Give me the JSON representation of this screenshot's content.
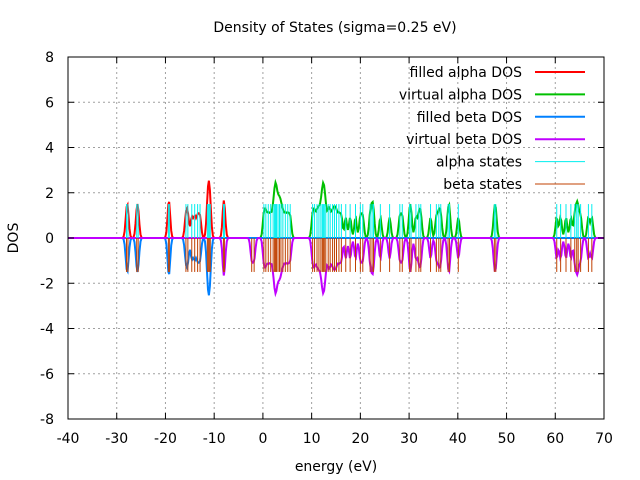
{
  "chart_data": {
    "type": "line",
    "title": "Density of States (sigma=0.25 eV)",
    "xlabel": "energy (eV)",
    "ylabel": "DOS",
    "xlim": [
      -40,
      70
    ],
    "ylim": [
      -8,
      8
    ],
    "xticks": [
      "-40",
      "-30",
      "-20",
      "-10",
      "0",
      "10",
      "20",
      "30",
      "40",
      "50",
      "60",
      "70"
    ],
    "xtick_values": [
      -40,
      -30,
      -20,
      -10,
      0,
      10,
      20,
      30,
      40,
      50,
      60,
      70
    ],
    "yticks": [
      "8",
      "6",
      "4",
      "2",
      "0",
      "-2",
      "-4",
      "-6",
      "-8"
    ],
    "ytick_values": [
      8,
      6,
      4,
      2,
      0,
      -2,
      -4,
      -6,
      -8
    ],
    "grid": true,
    "legend_position": "top-right",
    "sigma": 0.25,
    "state_height": 1.5,
    "series": [
      {
        "name": "filled alpha DOS",
        "color": "#ff0000",
        "sign": 1,
        "states": [
          -28.0,
          -27.7,
          -25.9,
          -25.6,
          -19.4,
          -19.2,
          -15.8,
          -15.4,
          -14.6,
          -14.0,
          -13.4,
          -12.9,
          -11.4,
          -11.2,
          -11.0,
          -10.8,
          -8.1,
          -7.9
        ]
      },
      {
        "name": "virtual alpha DOS",
        "color": "#00c000",
        "sign": 1,
        "states": [
          0.2,
          0.6,
          1.1,
          1.6,
          2.1,
          2.4,
          2.6,
          2.8,
          3.1,
          3.4,
          3.7,
          4.1,
          4.6,
          5.1,
          5.6,
          10.2,
          10.6,
          11.1,
          11.5,
          11.9,
          12.2,
          12.4,
          12.6,
          12.9,
          13.4,
          13.8,
          14.3,
          14.7,
          15.1,
          15.6,
          16.1,
          17.0,
          17.9,
          19.0,
          20.0,
          20.5,
          22.0,
          22.4,
          22.7,
          24.1,
          26.0,
          28.1,
          28.6,
          30.1,
          30.4,
          31.4,
          32.0,
          32.4,
          34.4,
          35.6,
          36.1,
          36.5,
          38.0,
          38.3,
          40.1,
          47.5,
          47.8,
          60.3,
          61.1,
          62.2,
          63.2,
          64.0,
          64.4,
          64.7,
          65.2,
          66.8,
          67.5
        ]
      },
      {
        "name": "filled beta DOS",
        "color": "#0080ff",
        "sign": -1,
        "states": [
          -28.0,
          -27.7,
          -25.9,
          -25.6,
          -19.4,
          -19.2,
          -15.8,
          -15.4,
          -14.6,
          -14.0,
          -13.4,
          -12.9,
          -11.4,
          -11.2,
          -11.0,
          -10.8
        ]
      },
      {
        "name": "virtual beta DOS",
        "color": "#c000ff",
        "sign": -1,
        "states": [
          -8.1,
          -7.9,
          -2.3,
          -1.8,
          0.2,
          0.6,
          1.1,
          1.6,
          2.1,
          2.4,
          2.6,
          2.8,
          3.1,
          3.4,
          3.7,
          4.1,
          4.6,
          5.1,
          5.6,
          10.2,
          10.6,
          11.1,
          11.5,
          11.9,
          12.2,
          12.4,
          12.6,
          12.9,
          13.4,
          13.8,
          14.3,
          14.7,
          15.1,
          15.6,
          16.1,
          17.0,
          17.9,
          19.0,
          20.0,
          20.5,
          22.0,
          22.4,
          22.7,
          24.1,
          26.0,
          28.1,
          28.6,
          30.1,
          30.4,
          31.4,
          32.0,
          32.4,
          34.4,
          35.6,
          36.1,
          36.5,
          38.0,
          38.3,
          40.1,
          47.5,
          47.8,
          60.3,
          61.1,
          62.2,
          63.2,
          64.0,
          64.4,
          64.7,
          65.2,
          66.8,
          67.5
        ]
      },
      {
        "name": "alpha states",
        "color": "#00eeee",
        "type": "sticks",
        "sign": 1
      },
      {
        "name": "beta states",
        "color": "#c04000",
        "type": "sticks",
        "sign": -1
      }
    ]
  }
}
